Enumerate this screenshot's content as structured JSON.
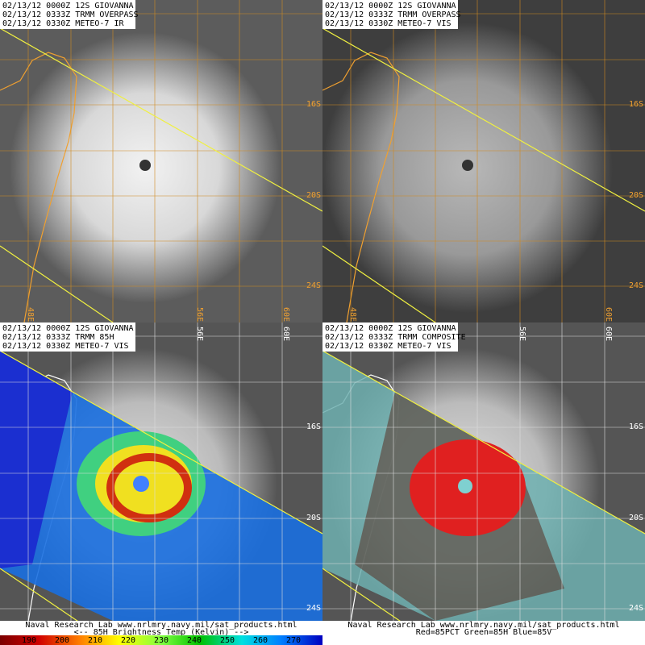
{
  "panels": [
    {
      "header": [
        "02/13/12 0000Z 12S GIOVANNA",
        "02/13/12 0333Z TRMM OVERPASS",
        "02/13/12 0330Z METEO-7 IR"
      ],
      "lat_labels": [
        "16S",
        "20S",
        "24S"
      ],
      "lon_labels": [
        "48E",
        "56E",
        "60E"
      ]
    },
    {
      "header": [
        "02/13/12 0000Z 12S GIOVANNA",
        "02/13/12 0333Z TRMM OVERPASS",
        "02/13/12 0330Z METEO-7 VIS"
      ],
      "lat_labels": [
        "16S",
        "20S",
        "24S"
      ],
      "lon_labels": [
        "48E",
        "60E"
      ]
    },
    {
      "header": [
        "02/13/12 0000Z 12S GIOVANNA",
        "02/13/12 0333Z TRMM 85H",
        "02/13/12 0330Z METEO-7 VIS"
      ],
      "lat_labels": [
        "16S",
        "20S",
        "24S"
      ],
      "lon_labels": [
        "56E",
        "60E"
      ],
      "footer": [
        "Naval Research Lab  www.nrlmry.navy.mil/sat_products.html",
        "<--   85H Brightness Temp (Kelvin)   -->"
      ],
      "colorbar_ticks": [
        190,
        200,
        210,
        220,
        230,
        240,
        250,
        260,
        270
      ]
    },
    {
      "header": [
        "02/13/12 0000Z 12S GIOVANNA",
        "02/13/12 0333Z TRMM COMPOSITE",
        "02/13/12 0330Z METEO-7 VIS"
      ],
      "lat_labels": [
        "16S",
        "20S",
        "24S"
      ],
      "lon_labels": [
        "56E",
        "60E"
      ],
      "footer": [
        "Naval Research Lab  www.nrlmry.navy.mil/sat_products.html",
        "Red=85PCT  Green=85H  Blue=85V"
      ]
    }
  ]
}
